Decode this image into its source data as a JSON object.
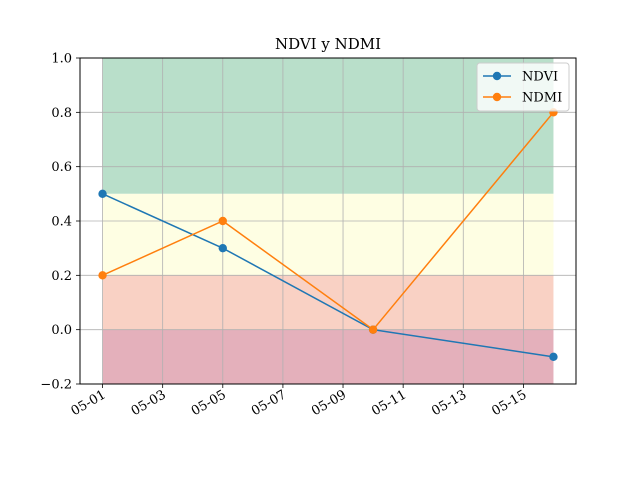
{
  "chart_data": {
    "type": "line",
    "title": "NDVI y NDMI",
    "xlabel": "",
    "ylabel": "",
    "x": [
      "2023-05-01",
      "2023-05-05",
      "2023-05-10",
      "2023-05-16"
    ],
    "x_tick_labels": [
      "05-01",
      "05-03",
      "05-05",
      "05-07",
      "05-09",
      "05-11",
      "05-13",
      "05-15"
    ],
    "y_tick_labels": [
      "−0.2",
      "0.0",
      "0.2",
      "0.4",
      "0.6",
      "0.8",
      "1.0"
    ],
    "ylim": [
      -0.2,
      1.0
    ],
    "grid": true,
    "legend_position": "top-right",
    "series": [
      {
        "name": "NDVI",
        "color": "#1f77b4",
        "marker": "circle",
        "values": [
          0.5,
          0.3,
          0.0,
          -0.1
        ]
      },
      {
        "name": "NDMI",
        "color": "#ff7f0e",
        "marker": "circle",
        "values": [
          0.2,
          0.4,
          0.0,
          0.8
        ]
      }
    ],
    "bands": [
      {
        "from": 0.5,
        "to": 1.0,
        "color": "#b9dfca"
      },
      {
        "from": 0.2,
        "to": 0.5,
        "color": "#fefee3"
      },
      {
        "from": 0.0,
        "to": 0.2,
        "color": "#f9d1c4"
      },
      {
        "from": -0.2,
        "to": 0.0,
        "color": "#e4b0bb"
      }
    ]
  }
}
